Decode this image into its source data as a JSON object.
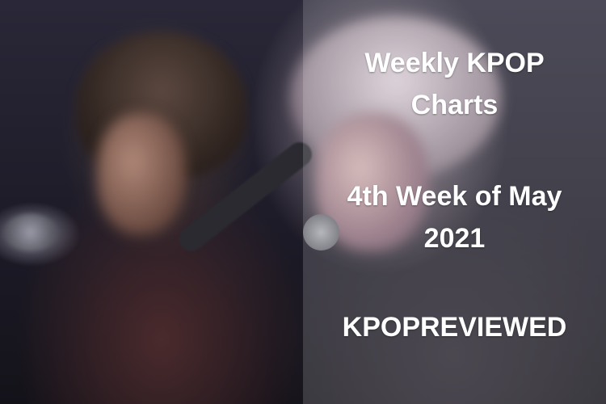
{
  "overlay": {
    "title_line1": "Weekly KPOP",
    "title_line2": "Charts",
    "date_line1": "4th Week of May",
    "date_line2": "2021",
    "brand": "KPOPREVIEWED"
  }
}
